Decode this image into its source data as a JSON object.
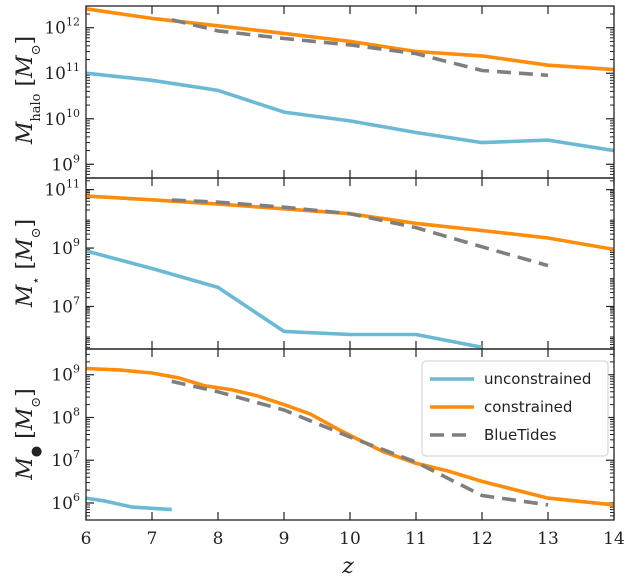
{
  "chart_data": {
    "type": "line",
    "xlabel": "z",
    "xlim": [
      6,
      14
    ],
    "x_ticks": [
      6,
      7,
      8,
      9,
      10,
      11,
      12,
      13,
      14
    ],
    "colors": {
      "unconstrained": "#6bb9d4",
      "constrained": "#ff8c0a",
      "BlueTides": "#7f7f7f"
    },
    "legend": {
      "panel": "bottom",
      "placement": "top-right",
      "entries": [
        "unconstrained",
        "constrained",
        "BlueTides"
      ]
    },
    "panels": [
      {
        "id": "halo",
        "ylabel": "M_halo [M_⊙]",
        "scale": "log",
        "ylim": [
          500000000.0,
          3000000000000.0
        ],
        "y_ticks": [
          1000000000.0,
          10000000000.0,
          100000000000.0,
          1000000000000.0
        ],
        "series": [
          {
            "name": "unconstrained",
            "x": [
              6,
              7,
              8,
              9,
              10,
              11,
              12,
              13,
              14
            ],
            "y": [
              100000000000.0,
              70000000000.0,
              42000000000.0,
              14000000000.0,
              9000000000.0,
              5000000000.0,
              3000000000.0,
              3400000000.0,
              2000000000.0
            ]
          },
          {
            "name": "constrained",
            "x": [
              6,
              7,
              8,
              9,
              10,
              11,
              12,
              13,
              14
            ],
            "y": [
              2600000000000.0,
              1600000000000.0,
              1100000000000.0,
              750000000000.0,
              500000000000.0,
              300000000000.0,
              240000000000.0,
              150000000000.0,
              120000000000.0
            ]
          },
          {
            "name": "BlueTides",
            "x": [
              7.3,
              8,
              9,
              10,
              11,
              12,
              13
            ],
            "y": [
              1500000000000.0,
              850000000000.0,
              580000000000.0,
              420000000000.0,
              270000000000.0,
              115000000000.0,
              90000000000.0
            ]
          }
        ]
      },
      {
        "id": "stellar",
        "ylabel": "M_⋆ [M_⊙]",
        "scale": "log",
        "ylim": [
          350000.0,
          250000000000.0
        ],
        "y_ticks": [
          10000000.0,
          1000000000.0,
          100000000000.0
        ],
        "series": [
          {
            "name": "unconstrained",
            "x": [
              6,
              7,
              8,
              9,
              10,
              11,
              12
            ],
            "y": [
              800000000.0,
              200000000.0,
              45000000.0,
              1400000.0,
              1100000.0,
              1100000.0,
              400000.0
            ]
          },
          {
            "name": "constrained",
            "x": [
              6,
              7,
              8,
              9,
              10,
              11,
              12,
              13,
              14
            ],
            "y": [
              60000000000.0,
              45000000000.0,
              32000000000.0,
              22000000000.0,
              15000000000.0,
              7000000000.0,
              4000000000.0,
              2200000000.0,
              900000000.0
            ]
          },
          {
            "name": "BlueTides",
            "x": [
              7.3,
              8,
              9,
              10,
              11,
              12,
              13
            ],
            "y": [
              44000000000.0,
              37000000000.0,
              25000000000.0,
              15000000000.0,
              5000000000.0,
              1100000000.0,
              250000000.0
            ]
          }
        ]
      },
      {
        "id": "bh",
        "ylabel": "M_● [M_⊙]",
        "scale": "log",
        "ylim": [
          400000.0,
          4000000000.0
        ],
        "y_ticks": [
          1000000.0,
          10000000.0,
          100000000.0,
          1000000000.0
        ],
        "series": [
          {
            "name": "unconstrained",
            "x": [
              6,
              6.3,
              6.7,
              7,
              7.3
            ],
            "y": [
              1300000.0,
              1100000.0,
              800000.0,
              750000.0,
              700000.0
            ]
          },
          {
            "name": "constrained",
            "x": [
              6,
              6.5,
              7,
              7.4,
              7.8,
              8.2,
              8.6,
              9,
              9.4,
              9.8,
              10.1,
              10.5,
              11,
              11.5,
              12,
              13,
              14
            ],
            "y": [
              1400000000.0,
              1300000000.0,
              1100000000.0,
              850000000.0,
              550000000.0,
              450000000.0,
              320000000.0,
              200000000.0,
              120000000.0,
              55000000.0,
              32000000.0,
              16000000.0,
              8500000.0,
              5500000.0,
              3200000.0,
              1300000.0,
              900000.0
            ]
          },
          {
            "name": "BlueTides",
            "x": [
              7.3,
              8,
              9,
              10,
              11,
              12,
              13
            ],
            "y": [
              700000000.0,
              400000000.0,
              150000000.0,
              35000000.0,
              9000000.0,
              1500000.0,
              900000.0
            ]
          }
        ]
      }
    ]
  }
}
